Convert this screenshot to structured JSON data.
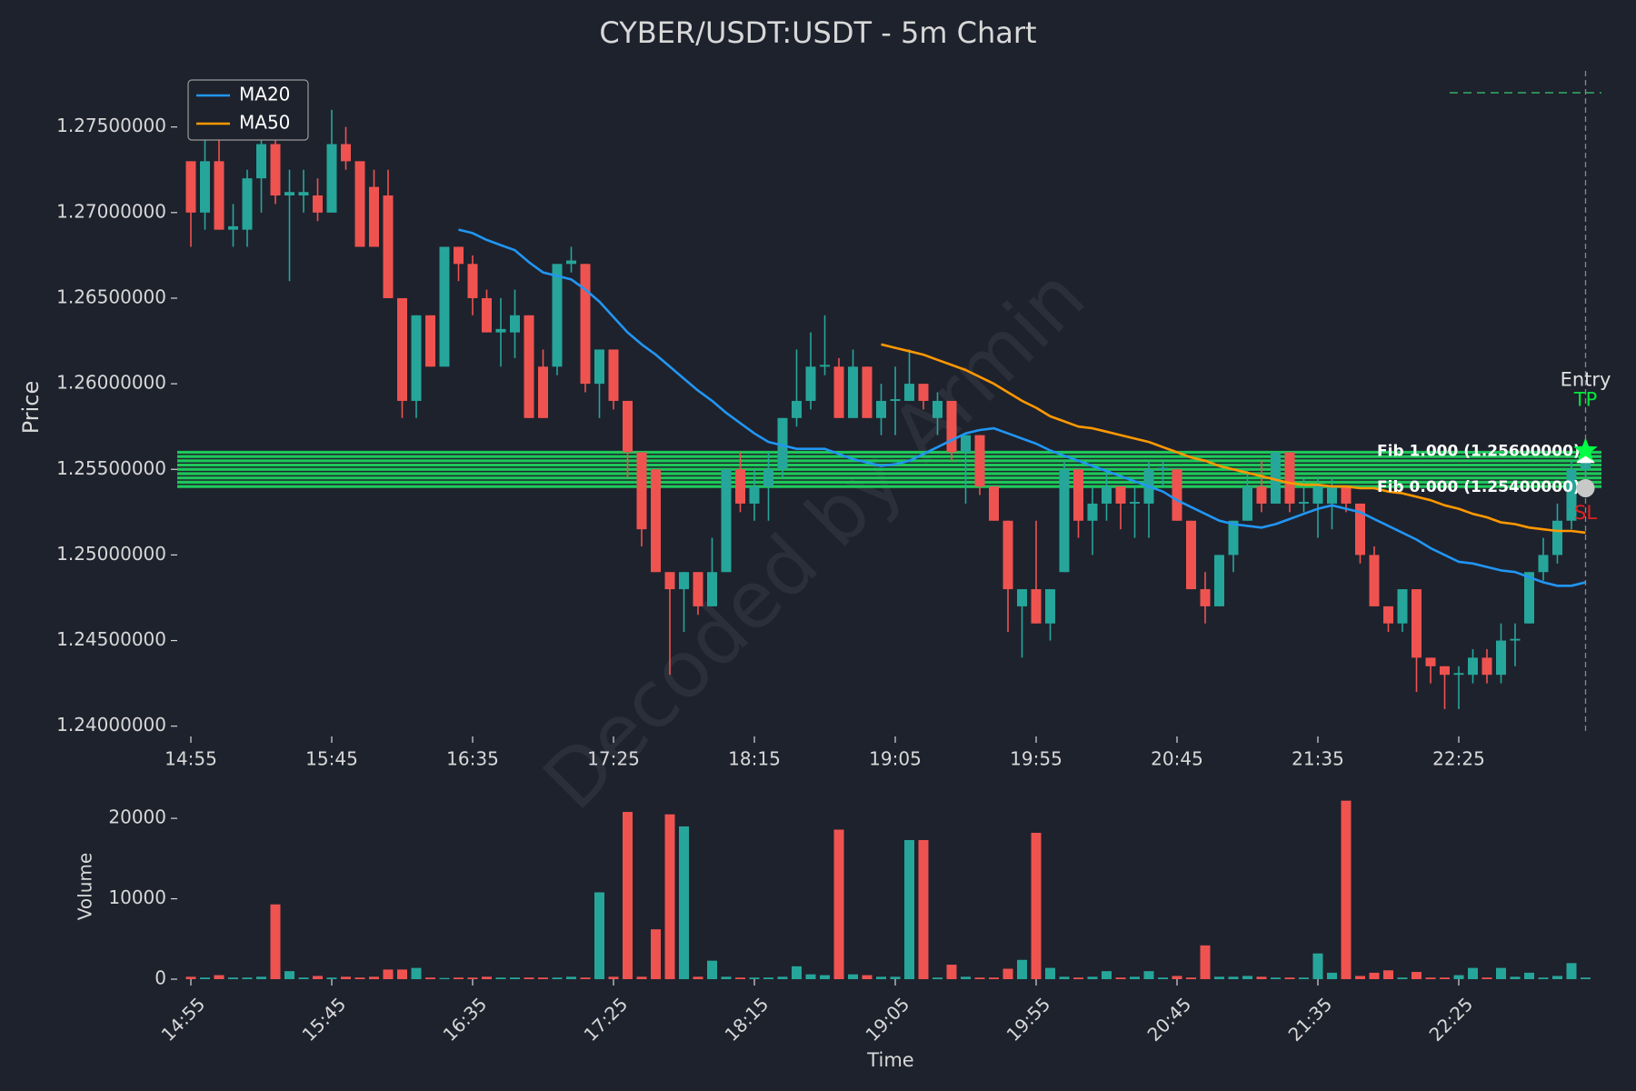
{
  "chart_data": {
    "type": "candlestick",
    "title": "CYBER/USDT:USDT - 5m Chart",
    "y_label": "Price",
    "volume_label": "Volume",
    "x_label": "Time",
    "watermark": "Decoded by Armin",
    "categories": [
      "14:55",
      null,
      null,
      null,
      null,
      null,
      null,
      null,
      null,
      null,
      "15:45",
      null,
      null,
      null,
      null,
      null,
      null,
      null,
      null,
      null,
      "16:35",
      null,
      null,
      null,
      null,
      null,
      null,
      null,
      null,
      null,
      "17:25",
      null,
      null,
      null,
      null,
      null,
      null,
      null,
      null,
      null,
      "18:15",
      null,
      null,
      null,
      null,
      null,
      null,
      null,
      null,
      null,
      "19:05",
      null,
      null,
      null,
      null,
      null,
      null,
      null,
      null,
      null,
      "19:55",
      null,
      null,
      null,
      null,
      null,
      null,
      null,
      null,
      null,
      "20:45",
      null,
      null,
      null,
      null,
      null,
      null,
      null,
      null,
      null,
      "21:35",
      null,
      null,
      null,
      null,
      null,
      null,
      null,
      null,
      null,
      "22:25",
      null,
      null,
      null,
      null,
      null,
      null,
      null,
      null,
      null
    ],
    "open": [
      1.273,
      1.27,
      1.273,
      1.269,
      1.269,
      1.272,
      1.274,
      1.271,
      1.271,
      1.271,
      1.27,
      1.274,
      1.273,
      1.2715,
      1.271,
      1.265,
      1.259,
      1.264,
      1.261,
      1.268,
      1.267,
      1.265,
      1.263,
      1.263,
      1.264,
      1.261,
      1.261,
      1.267,
      1.267,
      1.26,
      1.262,
      1.259,
      1.256,
      1.255,
      1.249,
      1.248,
      1.249,
      1.247,
      1.249,
      1.255,
      1.253,
      1.254,
      1.255,
      1.258,
      1.259,
      1.261,
      1.261,
      1.258,
      1.261,
      1.258,
      1.259,
      1.259,
      1.26,
      1.258,
      1.259,
      1.256,
      1.257,
      1.254,
      1.252,
      1.247,
      1.248,
      1.246,
      1.249,
      1.255,
      1.252,
      1.253,
      1.254,
      1.253,
      1.253,
      1.255,
      1.255,
      1.252,
      1.248,
      1.247,
      1.25,
      1.252,
      1.254,
      1.253,
      1.256,
      1.253,
      1.253,
      1.253,
      1.254,
      1.253,
      1.25,
      1.247,
      1.246,
      1.248,
      1.244,
      1.2435,
      1.243,
      1.243,
      1.244,
      1.243,
      1.245,
      1.246,
      1.249,
      1.25,
      1.252,
      1.255
    ],
    "high": [
      1.273,
      1.2745,
      1.2755,
      1.2705,
      1.2725,
      1.2745,
      1.2745,
      1.2725,
      1.2725,
      1.272,
      1.276,
      1.275,
      1.273,
      1.2725,
      1.2725,
      1.265,
      1.264,
      1.264,
      1.268,
      1.268,
      1.2675,
      1.2655,
      1.265,
      1.2655,
      1.264,
      1.262,
      1.267,
      1.268,
      1.267,
      1.262,
      1.262,
      1.259,
      1.256,
      1.255,
      1.249,
      1.249,
      1.249,
      1.251,
      1.255,
      1.256,
      1.255,
      1.256,
      1.258,
      1.262,
      1.263,
      1.264,
      1.2615,
      1.262,
      1.261,
      1.26,
      1.261,
      1.262,
      1.26,
      1.2595,
      1.259,
      1.257,
      1.257,
      1.254,
      1.252,
      1.248,
      1.252,
      1.248,
      1.2555,
      1.255,
      1.254,
      1.255,
      1.254,
      1.254,
      1.2555,
      1.2555,
      1.255,
      1.252,
      1.249,
      1.25,
      1.252,
      1.255,
      1.2555,
      1.256,
      1.256,
      1.2545,
      1.2545,
      1.2545,
      1.254,
      1.253,
      1.2505,
      1.247,
      1.248,
      1.248,
      1.244,
      1.2435,
      1.2435,
      1.2445,
      1.2445,
      1.246,
      1.246,
      1.249,
      1.251,
      1.253,
      1.2555,
      1.2565
    ],
    "low": [
      1.268,
      1.269,
      1.269,
      1.268,
      1.268,
      1.27,
      1.2705,
      1.266,
      1.27,
      1.2695,
      1.27,
      1.2725,
      1.268,
      1.268,
      1.265,
      1.258,
      1.258,
      1.261,
      1.261,
      1.266,
      1.264,
      1.263,
      1.261,
      1.2615,
      1.258,
      1.258,
      1.2605,
      1.2665,
      1.2595,
      1.258,
      1.2585,
      1.2545,
      1.2505,
      1.249,
      1.243,
      1.2455,
      1.2465,
      1.247,
      1.249,
      1.2525,
      1.252,
      1.252,
      1.2545,
      1.2575,
      1.2585,
      1.2605,
      1.258,
      1.258,
      1.258,
      1.257,
      1.257,
      1.259,
      1.2585,
      1.257,
      1.2555,
      1.253,
      1.2535,
      1.252,
      1.2455,
      1.244,
      1.246,
      1.245,
      1.249,
      1.251,
      1.25,
      1.252,
      1.2515,
      1.251,
      1.251,
      1.254,
      1.252,
      1.248,
      1.246,
      1.247,
      1.249,
      1.252,
      1.2525,
      1.253,
      1.2525,
      1.2525,
      1.251,
      1.2515,
      1.2525,
      1.2495,
      1.247,
      1.2455,
      1.2455,
      1.242,
      1.2425,
      1.241,
      1.241,
      1.2425,
      1.2425,
      1.2425,
      1.2435,
      1.246,
      1.2485,
      1.2495,
      1.2515,
      1.2545
    ],
    "close": [
      1.27,
      1.273,
      1.269,
      1.2692,
      1.272,
      1.274,
      1.271,
      1.2712,
      1.2712,
      1.27,
      1.274,
      1.273,
      1.268,
      1.268,
      1.265,
      1.259,
      1.264,
      1.261,
      1.268,
      1.267,
      1.265,
      1.263,
      1.2632,
      1.264,
      1.258,
      1.258,
      1.267,
      1.2672,
      1.26,
      1.262,
      1.259,
      1.256,
      1.2515,
      1.249,
      1.248,
      1.249,
      1.247,
      1.249,
      1.255,
      1.253,
      1.254,
      1.255,
      1.258,
      1.259,
      1.261,
      1.2611,
      1.258,
      1.261,
      1.258,
      1.259,
      1.2591,
      1.26,
      1.259,
      1.259,
      1.256,
      1.257,
      1.254,
      1.252,
      1.248,
      1.248,
      1.246,
      1.248,
      1.255,
      1.252,
      1.253,
      1.254,
      1.253,
      1.2531,
      1.255,
      1.2551,
      1.252,
      1.248,
      1.247,
      1.25,
      1.252,
      1.254,
      1.253,
      1.256,
      1.253,
      1.2531,
      1.254,
      1.254,
      1.253,
      1.25,
      1.247,
      1.246,
      1.248,
      1.244,
      1.2435,
      1.243,
      1.2431,
      1.244,
      1.243,
      1.245,
      1.2451,
      1.249,
      1.25,
      1.252,
      1.255,
      1.256
    ],
    "volume": [
      300,
      200,
      500,
      200,
      200,
      300,
      9300,
      1000,
      200,
      400,
      200,
      300,
      200,
      300,
      1200,
      1200,
      1400,
      200,
      150,
      200,
      200,
      300,
      200,
      200,
      200,
      200,
      200,
      300,
      200,
      10800,
      300,
      20800,
      300,
      6200,
      20500,
      19000,
      300,
      2300,
      300,
      200,
      200,
      200,
      300,
      1600,
      600,
      500,
      18600,
      600,
      500,
      300,
      300,
      17300,
      17300,
      200,
      1800,
      300,
      200,
      200,
      1300,
      2400,
      18200,
      1400,
      300,
      200,
      300,
      1000,
      200,
      300,
      1000,
      200,
      400,
      200,
      4200,
      300,
      300,
      400,
      300,
      200,
      200,
      200,
      3200,
      800,
      22200,
      400,
      800,
      1100,
      200,
      900,
      200,
      200,
      500,
      1400,
      200,
      1400,
      300,
      800,
      200,
      400,
      2000,
      200
    ],
    "up_color": "#26a69a",
    "down_color": "#ef5350",
    "series": [
      {
        "name": "MA20",
        "color": "#2196f3",
        "values": [
          null,
          null,
          null,
          null,
          null,
          null,
          null,
          null,
          null,
          null,
          null,
          null,
          null,
          null,
          null,
          null,
          null,
          null,
          null,
          1.269,
          1.2688,
          1.2684,
          1.2681,
          1.2678,
          1.2671,
          1.2665,
          1.2663,
          1.2661,
          1.2655,
          1.2648,
          1.2639,
          1.263,
          1.2623,
          1.2617,
          1.261,
          1.2603,
          1.2596,
          1.259,
          1.2583,
          1.2577,
          1.2571,
          1.2566,
          1.2564,
          1.2562,
          1.2562,
          1.2562,
          1.2559,
          1.2556,
          1.2554,
          1.2552,
          1.2553,
          1.2555,
          1.2559,
          1.2563,
          1.2567,
          1.2571,
          1.2573,
          1.2574,
          1.2571,
          1.2568,
          1.2565,
          1.2561,
          1.2558,
          1.2555,
          1.2552,
          1.2549,
          1.2546,
          1.2543,
          1.254,
          1.2537,
          1.2532,
          1.2528,
          1.2524,
          1.252,
          1.2518,
          1.2517,
          1.2516,
          1.2518,
          1.2521,
          1.2524,
          1.2527,
          1.2529,
          1.2527,
          1.2525,
          1.2521,
          1.2517,
          1.2513,
          1.2509,
          1.2504,
          1.25,
          1.2496,
          1.2495,
          1.2493,
          1.2491,
          1.249,
          1.2487,
          1.2484,
          1.2482,
          1.2482,
          1.2484
        ]
      },
      {
        "name": "MA50",
        "color": "#ff9800",
        "values": [
          null,
          null,
          null,
          null,
          null,
          null,
          null,
          null,
          null,
          null,
          null,
          null,
          null,
          null,
          null,
          null,
          null,
          null,
          null,
          null,
          null,
          null,
          null,
          null,
          null,
          null,
          null,
          null,
          null,
          null,
          null,
          null,
          null,
          null,
          null,
          null,
          null,
          null,
          null,
          null,
          null,
          null,
          null,
          null,
          null,
          null,
          null,
          null,
          null,
          1.2623,
          1.2621,
          1.2619,
          1.2617,
          1.2614,
          1.2611,
          1.2608,
          1.2604,
          1.26,
          1.2595,
          1.259,
          1.2586,
          1.2581,
          1.2578,
          1.2575,
          1.2574,
          1.2572,
          1.257,
          1.2568,
          1.2566,
          1.2563,
          1.256,
          1.2557,
          1.2555,
          1.2552,
          1.255,
          1.2548,
          1.2546,
          1.2544,
          1.2542,
          1.2541,
          1.2541,
          1.254,
          1.254,
          1.2539,
          1.2539,
          1.2537,
          1.2536,
          1.2534,
          1.2532,
          1.2529,
          1.2527,
          1.2524,
          1.2522,
          1.2519,
          1.2518,
          1.2516,
          1.2515,
          1.2514,
          1.2514,
          1.2513
        ]
      }
    ],
    "fib_lines": [
      1.256,
      1.25575,
      1.2555,
      1.25525,
      1.255,
      1.25475,
      1.2545,
      1.25425,
      1.254
    ],
    "fib_labels": [
      {
        "value": 1.256,
        "label": "Fib 1.000 (1.25600000)"
      },
      {
        "value": 1.254,
        "label": "Fib 0.000 (1.25400000)"
      }
    ],
    "fib_color": "#1ec85a",
    "dashed_level": 1.277,
    "entry": {
      "label": "Entry",
      "value": 1.2558
    },
    "tp": {
      "label": "TP",
      "value": 1.2561
    },
    "sl": {
      "label": "SL",
      "value": 1.2539
    },
    "ylim": [
      1.2394,
      1.2787
    ],
    "yticks": [
      {
        "value": 1.24,
        "label": "1.24000000"
      },
      {
        "value": 1.245,
        "label": "1.24500000"
      },
      {
        "value": 1.25,
        "label": "1.25000000"
      },
      {
        "value": 1.255,
        "label": "1.25500000"
      },
      {
        "value": 1.26,
        "label": "1.26000000"
      },
      {
        "value": 1.265,
        "label": "1.26500000"
      },
      {
        "value": 1.27,
        "label": "1.27000000"
      },
      {
        "value": 1.275,
        "label": "1.27500000"
      }
    ],
    "y2lim": [
      0,
      22500
    ],
    "y2ticks": [
      0,
      10000,
      20000
    ],
    "legend": "upper left"
  }
}
